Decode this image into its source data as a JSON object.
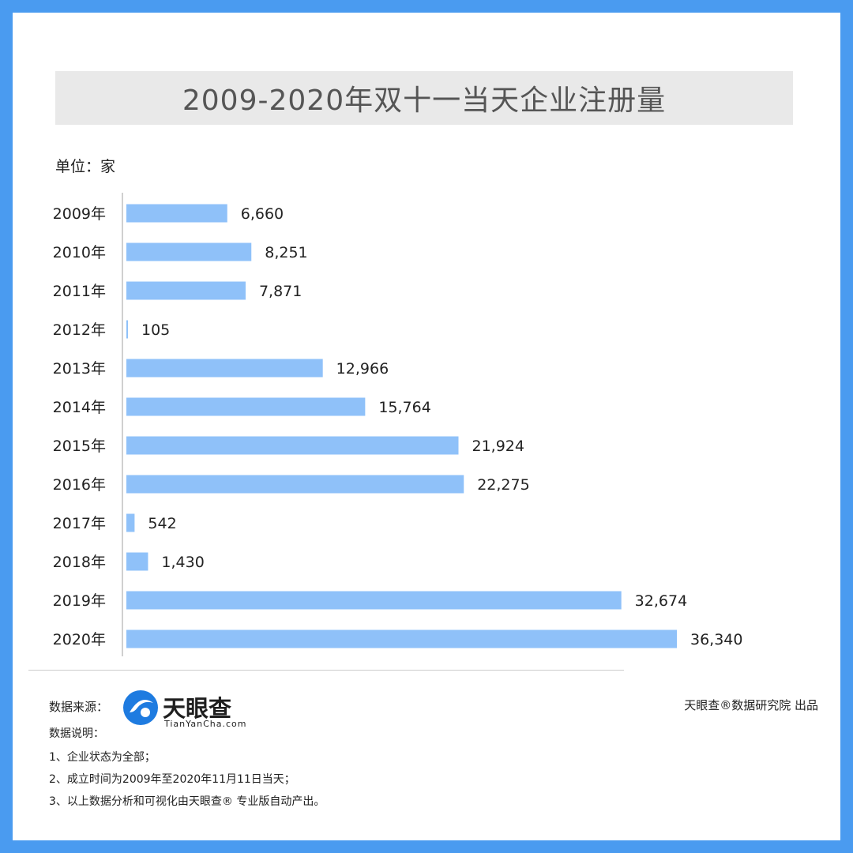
{
  "unit_label": "单位：家",
  "chart_data": {
    "type": "bar",
    "orientation": "horizontal",
    "title": "2009-2020年双十一当天企业注册量",
    "categories": [
      "2009年",
      "2010年",
      "2011年",
      "2012年",
      "2013年",
      "2014年",
      "2015年",
      "2016年",
      "2017年",
      "2018年",
      "2019年",
      "2020年"
    ],
    "values": [
      6660,
      8251,
      7871,
      105,
      12966,
      15764,
      21924,
      22275,
      542,
      1430,
      32674,
      36340
    ],
    "value_labels": [
      "6,660",
      "8,251",
      "7,871",
      "105",
      "12,966",
      "15,764",
      "21,924",
      "22,275",
      "542",
      "1,430",
      "32,674",
      "36,340"
    ],
    "bar_color": "#8fc1f9",
    "xlim": [
      0,
      40000
    ],
    "grid": false,
    "legend": false
  },
  "footer": {
    "source_label": "数据来源：",
    "logo_name": "天眼查",
    "logo_sub": "TianYanCha.com",
    "publisher": "天眼查®数据研究院 出品",
    "notes_title": "数据说明：",
    "notes": [
      "1、企业状态为全部；",
      "2、成立时间为2009年至2020年11月11日当天；",
      "3、以上数据分析和可视化由天眼查® 专业版自动产出。"
    ]
  },
  "colors": {
    "accent": "#4a9bf0",
    "logo_blue": "#1e7be0"
  }
}
